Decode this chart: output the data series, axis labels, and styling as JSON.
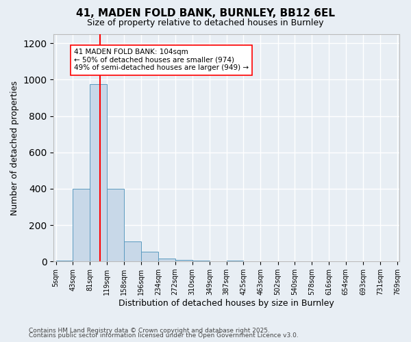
{
  "title_line1": "41, MADEN FOLD BANK, BURNLEY, BB12 6EL",
  "title_line2": "Size of property relative to detached houses in Burnley",
  "xlabel": "Distribution of detached houses by size in Burnley",
  "ylabel": "Number of detached properties",
  "footer_line1": "Contains HM Land Registry data © Crown copyright and database right 2025.",
  "footer_line2": "Contains public sector information licensed under the Open Government Licence v3.0.",
  "bar_edges": [
    5,
    43,
    81,
    119,
    158,
    196,
    234,
    272,
    310,
    349,
    387,
    425,
    463,
    502,
    540,
    578,
    616,
    654,
    693,
    731,
    769
  ],
  "bar_heights": [
    5,
    400,
    975,
    400,
    110,
    55,
    15,
    10,
    3,
    0,
    5,
    0,
    0,
    0,
    0,
    0,
    0,
    0,
    0,
    0
  ],
  "bar_color": "#c8d8e8",
  "bar_edgecolor": "#5a9abf",
  "property_sqm": 104,
  "property_line_color": "red",
  "annotation_text": "41 MADEN FOLD BANK: 104sqm\n← 50% of detached houses are smaller (974)\n49% of semi-detached houses are larger (949) →",
  "annotation_box_edgecolor": "red",
  "annotation_box_facecolor": "white",
  "ylim": [
    0,
    1250
  ],
  "yticks": [
    0,
    200,
    400,
    600,
    800,
    1000,
    1200
  ],
  "bg_color": "#e8eef4",
  "grid_color": "white",
  "figsize": [
    6.0,
    5.0
  ],
  "dpi": 100
}
